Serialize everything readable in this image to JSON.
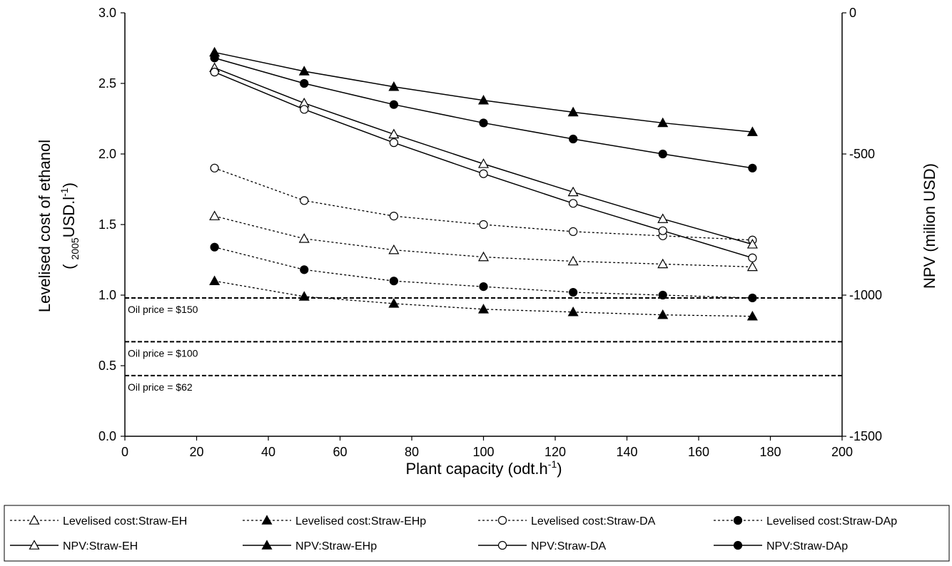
{
  "chart_data": {
    "type": "line",
    "title": "",
    "x": [
      25,
      50,
      75,
      100,
      125,
      150,
      175
    ],
    "xlabel": "Plant capacity (odt.h",
    "xlabel_sup": "-1",
    "xlabel_end": ")",
    "xlim": [
      0,
      200
    ],
    "xticks": [
      0,
      20,
      40,
      60,
      80,
      100,
      120,
      140,
      160,
      180,
      200
    ],
    "ylabel_left_line1": "Levelised cost of ethanol",
    "ylabel_left_line2_open": "( ",
    "ylabel_left_line2_sub": "2005",
    "ylabel_left_line2_main": "USD.l",
    "ylabel_left_line2_sup": "-1",
    "ylabel_left_line2_close": ")",
    "ylim_left": [
      0,
      3
    ],
    "yticks_left": [
      "0.0",
      "0.5",
      "1.0",
      "1.5",
      "2.0",
      "2.5",
      "3.0"
    ],
    "ylabel_right": "NPV (milion USD)",
    "ylim_right": [
      -1500,
      0
    ],
    "yticks_right": [
      "-1500",
      "-1000",
      "-500",
      "0"
    ],
    "grid": false,
    "legend_position": "bottom",
    "series": [
      {
        "name": "Levelised cost:Straw-EH",
        "axis": "left",
        "style": "dashed",
        "marker": "triangle",
        "filled": false,
        "values": [
          1.56,
          1.4,
          1.32,
          1.27,
          1.24,
          1.22,
          1.2
        ]
      },
      {
        "name": "Levelised cost:Straw-EHp",
        "axis": "left",
        "style": "dashed",
        "marker": "triangle",
        "filled": true,
        "values": [
          1.1,
          0.99,
          0.94,
          0.9,
          0.88,
          0.86,
          0.85
        ]
      },
      {
        "name": "Levelised cost:Straw-DA",
        "axis": "left",
        "style": "dashed",
        "marker": "circle",
        "filled": false,
        "values": [
          1.9,
          1.67,
          1.56,
          1.5,
          1.45,
          1.42,
          1.39
        ]
      },
      {
        "name": "Levelised cost:Straw-DAp",
        "axis": "left",
        "style": "dashed",
        "marker": "circle",
        "filled": true,
        "values": [
          1.34,
          1.18,
          1.1,
          1.06,
          1.02,
          1.0,
          0.98
        ]
      },
      {
        "name": "NPV:Straw-EH",
        "axis": "right",
        "style": "solid",
        "marker": "triangle",
        "filled": false,
        "values": [
          -195,
          -320,
          -430,
          -535,
          -635,
          -730,
          -820
        ]
      },
      {
        "name": "NPV:Straw-EHp",
        "axis": "right",
        "style": "solid",
        "marker": "triangle",
        "filled": true,
        "values": [
          -140,
          -207,
          -262,
          -310,
          -352,
          -390,
          -422
        ]
      },
      {
        "name": "NPV:Straw-DA",
        "axis": "right",
        "style": "solid",
        "marker": "circle",
        "filled": false,
        "values": [
          -210,
          -342,
          -460,
          -570,
          -675,
          -772,
          -868
        ]
      },
      {
        "name": "NPV:Straw-DAp",
        "axis": "right",
        "style": "solid",
        "marker": "circle",
        "filled": true,
        "values": [
          -160,
          -250,
          -325,
          -390,
          -447,
          -500,
          -550
        ]
      }
    ],
    "reference_lines": [
      {
        "label": "Oil price = $150",
        "value": 0.98
      },
      {
        "label": "Oil price = $100",
        "value": 0.67
      },
      {
        "label": "Oil price = $62",
        "value": 0.43
      }
    ]
  }
}
